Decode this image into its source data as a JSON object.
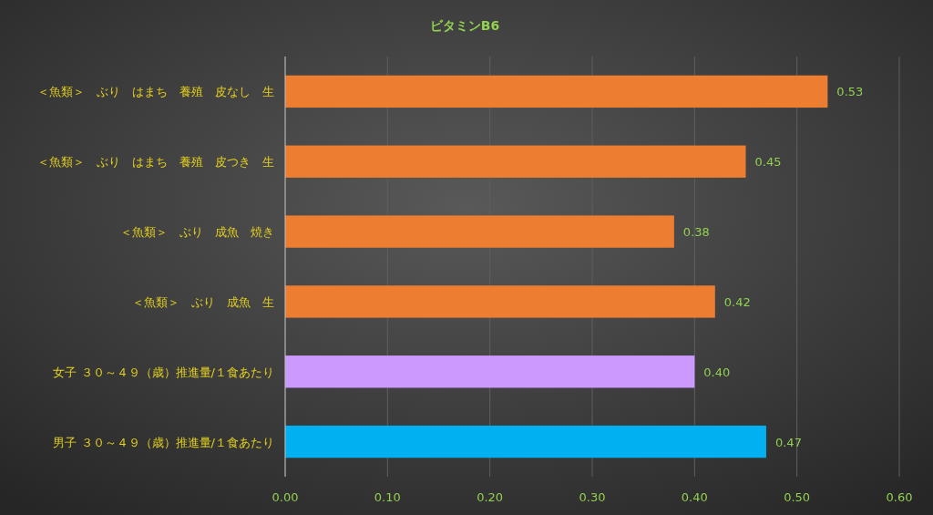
{
  "chart_data": {
    "type": "bar",
    "orientation": "horizontal",
    "title": "ビタミンB6",
    "categories": [
      "＜魚類＞　ぶり　はまち　養殖　皮なし　生",
      "＜魚類＞　ぶり　はまち　養殖　皮つき　生",
      "＜魚類＞　ぶり　成魚　焼き",
      "＜魚類＞　ぶり　成魚　生",
      "女子 ３０～４９（歳）推進量/１食あたり",
      "男子 ３０～４９（歳）推進量/１食あたり"
    ],
    "values": [
      0.53,
      0.45,
      0.38,
      0.42,
      0.4,
      0.47
    ],
    "colors": [
      "#ed7d31",
      "#ed7d31",
      "#ed7d31",
      "#ed7d31",
      "#cc99ff",
      "#00b0f0"
    ],
    "xlim": [
      0,
      0.6
    ],
    "xticks": [
      {
        "value": 0,
        "label": "0.00"
      },
      {
        "value": 0.1,
        "label": "0.10"
      },
      {
        "value": 0.2,
        "label": "0.20"
      },
      {
        "value": 0.3,
        "label": "0.30"
      },
      {
        "value": 0.4,
        "label": "0.40"
      },
      {
        "value": 0.5,
        "label": "0.50"
      },
      {
        "value": 0.6,
        "label": "0.60"
      }
    ],
    "value_labels": [
      "0.53",
      "0.45",
      "0.38",
      "0.42",
      "0.40",
      "0.47"
    ],
    "grid": "x"
  }
}
